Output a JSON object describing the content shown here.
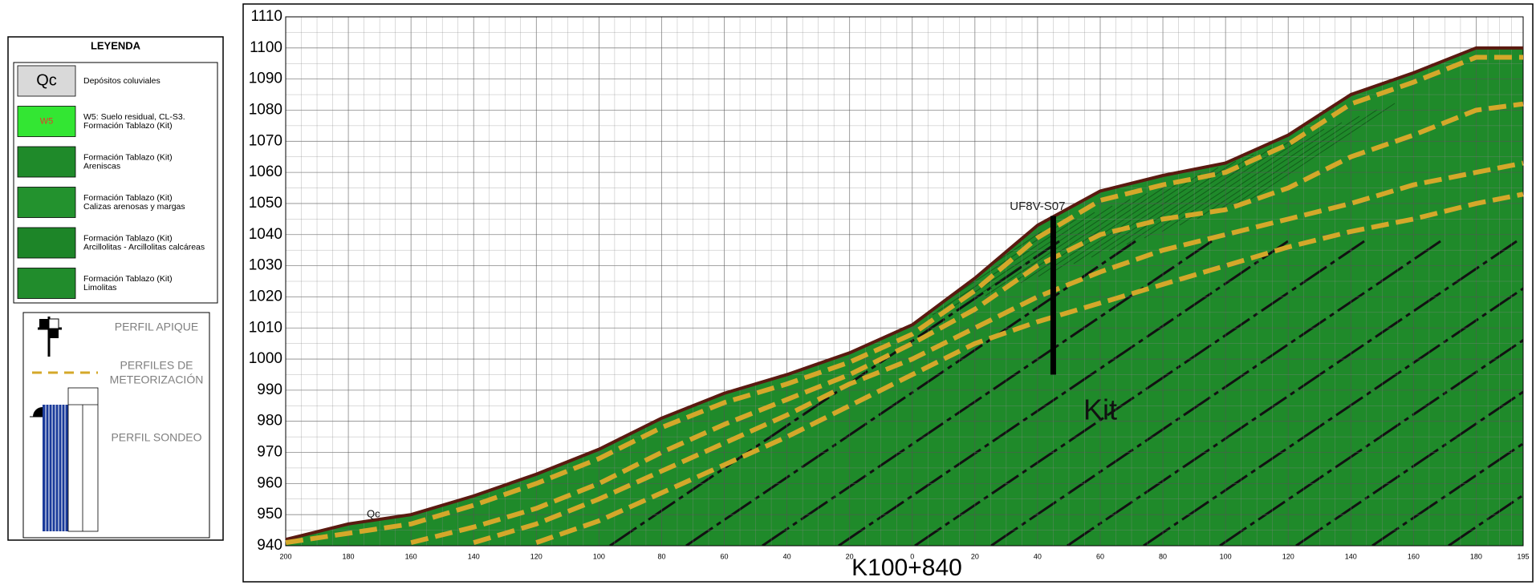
{
  "legend": {
    "title": "LEYENDA",
    "items": [
      {
        "symbol": "Qc",
        "color": "#d9d9d9",
        "lines": [
          "Depósitos coluviales"
        ]
      },
      {
        "symbol": "W5",
        "color": "#33e633",
        "lines": [
          "W5: Suelo residual, CL-S3.",
          "Formación Tablazo (Kit)"
        ]
      },
      {
        "color": "#1f8a2a",
        "lines": [
          "Formación Tablazo (Kit)",
          "Areniscas"
        ]
      },
      {
        "color": "#23922e",
        "lines": [
          "Formación Tablazo (Kit)",
          "Calizas arenosas y margas"
        ]
      },
      {
        "color": "#1d8528",
        "lines": [
          "Formación Tablazo (Kit)",
          "Arcillolitas - Arcillolitas calcáreas"
        ]
      },
      {
        "color": "#218c2c",
        "lines": [
          "Formación Tablazo (Kit)",
          "Limolitas"
        ]
      }
    ],
    "symbols": [
      {
        "lines": [
          "PERFIL APIQUE"
        ]
      },
      {
        "lines": [
          "PERFILES DE",
          "METEORIZACIÓN"
        ]
      },
      {
        "lines": [
          "PERFIL SONDEO"
        ]
      }
    ]
  },
  "chart_data": {
    "type": "profile",
    "station": "K100+840",
    "xlim": [
      -200,
      195
    ],
    "ylim": [
      940,
      1110
    ],
    "yticks": [
      940,
      950,
      960,
      970,
      980,
      990,
      1000,
      1010,
      1020,
      1030,
      1040,
      1050,
      1060,
      1070,
      1080,
      1090,
      1100,
      1110
    ],
    "xticks": [
      {
        "value": -200,
        "label": "200"
      },
      {
        "value": -180,
        "label": "180"
      },
      {
        "value": -160,
        "label": "160"
      },
      {
        "value": -140,
        "label": "140"
      },
      {
        "value": -120,
        "label": "120"
      },
      {
        "value": -100,
        "label": "100"
      },
      {
        "value": -80,
        "label": "80"
      },
      {
        "value": -60,
        "label": "60"
      },
      {
        "value": -40,
        "label": "40"
      },
      {
        "value": -20,
        "label": "20"
      },
      0,
      20,
      40,
      60,
      80,
      100,
      120,
      140,
      160,
      180,
      195
    ],
    "grid": true,
    "x": [
      -200,
      -180,
      -160,
      -140,
      -120,
      -100,
      -80,
      -60,
      -40,
      -20,
      0,
      20,
      40,
      60,
      80,
      100,
      120,
      140,
      160,
      180,
      195
    ],
    "series": [
      {
        "color": "#5a1a10",
        "values": [
          942,
          947,
          950,
          956,
          963,
          971,
          981,
          989,
          995,
          1002,
          1011,
          1026,
          1043,
          1054,
          1059,
          1063,
          1072,
          1085,
          1092,
          1100,
          1100
        ]
      },
      {
        "color": "#d4a82a",
        "dashed": true,
        "values": [
          941,
          944,
          947,
          953,
          960,
          968,
          978,
          986,
          992,
          999,
          1008,
          1022,
          1039,
          1051,
          1056,
          1060,
          1069,
          1082,
          1089,
          1097,
          1097
        ]
      },
      {
        "color": "#d4a82a",
        "dashed": true,
        "values": [
          null,
          null,
          941,
          946,
          952,
          960,
          970,
          979,
          987,
          995,
          1005,
          1016,
          1030,
          1040,
          1045,
          1048,
          1055,
          1065,
          1072,
          1080,
          1082
        ]
      },
      {
        "color": "#d4a82a",
        "dashed": true,
        "values": [
          null,
          null,
          null,
          941,
          947,
          955,
          964,
          973,
          982,
          992,
          1000,
          1010,
          1020,
          1028,
          1035,
          1040,
          1045,
          1050,
          1056,
          1060,
          1063
        ]
      },
      {
        "color": "#d4a82a",
        "dashed": true,
        "values": [
          null,
          null,
          null,
          null,
          941,
          948,
          957,
          966,
          975,
          985,
          995,
          1005,
          1012,
          1018,
          1024,
          1030,
          1036,
          1041,
          1045,
          1050,
          1053
        ]
      }
    ],
    "borehole": {
      "x": 45,
      "top": 1046,
      "bottom": 995
    },
    "annotations": [
      {
        "text": "UF8V-S07",
        "x": 40,
        "y": 1049
      },
      {
        "text": "Kit",
        "x": 60,
        "y": 983
      },
      {
        "text": "Qc",
        "x": -172,
        "y": 950
      }
    ]
  }
}
